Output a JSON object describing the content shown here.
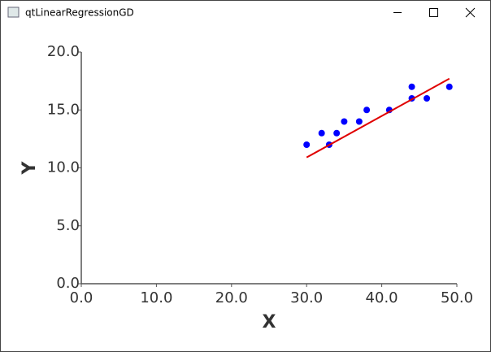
{
  "window": {
    "title": "qtLinearRegressionGD"
  },
  "chart_data": {
    "type": "scatter",
    "x_label": "X",
    "y_label": "Y",
    "xlim": [
      0,
      50
    ],
    "ylim": [
      0,
      20
    ],
    "xticks": [
      {
        "value": 0,
        "label": "0.0"
      },
      {
        "value": 10,
        "label": "10.0"
      },
      {
        "value": 20,
        "label": "20.0"
      },
      {
        "value": 30,
        "label": "30.0"
      },
      {
        "value": 40,
        "label": "40.0"
      },
      {
        "value": 50,
        "label": "50.0"
      }
    ],
    "yticks": [
      {
        "value": 0,
        "label": "0.0"
      },
      {
        "value": 5,
        "label": "5.0"
      },
      {
        "value": 10,
        "label": "10.0"
      },
      {
        "value": 15,
        "label": "15.0"
      },
      {
        "value": 20,
        "label": "20.0"
      }
    ],
    "grid": false,
    "series": [
      {
        "type": "scatter",
        "color": "#0000ff",
        "x": [
          30,
          32,
          33,
          34,
          35,
          37,
          38,
          41,
          44,
          44,
          46,
          49
        ],
        "values": [
          12,
          13,
          12,
          13,
          14,
          14,
          15,
          15,
          17,
          16,
          16,
          17
        ]
      },
      {
        "type": "line",
        "color": "#e00000",
        "x": [
          30,
          49
        ],
        "values": [
          10.9,
          17.7
        ]
      }
    ]
  }
}
